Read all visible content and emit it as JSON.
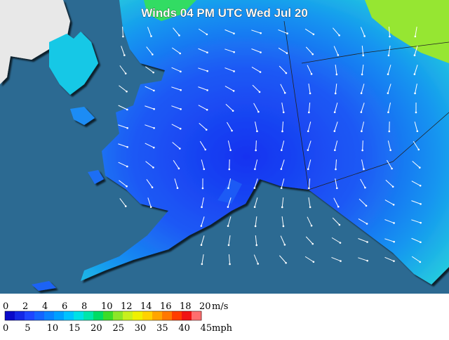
{
  "title": "Winds 04 PM UTC Wed Jul 20",
  "legend": {
    "colors": [
      "#0a0ac8",
      "#1428e6",
      "#1e46ff",
      "#1464ff",
      "#0a82ff",
      "#00a0ff",
      "#00c3ff",
      "#00e1e6",
      "#00e6aa",
      "#00dc64",
      "#3cdc28",
      "#8ce628",
      "#c8f01e",
      "#f0f000",
      "#ffd200",
      "#ffa500",
      "#ff7800",
      "#ff3c00",
      "#f01414",
      "#ff6e6e"
    ],
    "ms_unit": "m/s",
    "ms_ticks": [
      0,
      2,
      4,
      6,
      8,
      10,
      12,
      14,
      16,
      18,
      20
    ],
    "ms_max": 20,
    "mph_unit": "mph",
    "mph_ticks": [
      0,
      5,
      10,
      15,
      20,
      25,
      30,
      35,
      40,
      45
    ],
    "mph_per_ms": 2.23694
  }
}
